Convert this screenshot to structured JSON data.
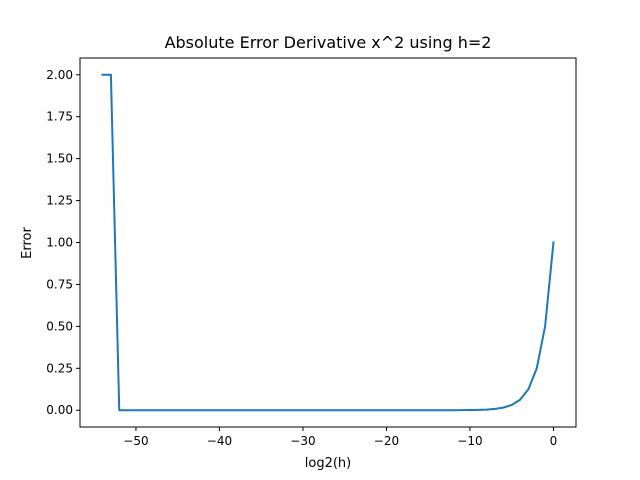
{
  "chart_data": {
    "type": "line",
    "title": "Absolute Error Derivative x^2 using h=2",
    "xlabel": "log2(h)",
    "ylabel": "Error",
    "xlim": [
      -56.7,
      2.7
    ],
    "ylim": [
      -0.1,
      2.1
    ],
    "grid": false,
    "x_ticks": [
      -50,
      -40,
      -30,
      -20,
      -10,
      0
    ],
    "x_tick_labels": [
      "−50",
      "−40",
      "−30",
      "−20",
      "−10",
      "0"
    ],
    "y_ticks": [
      0.0,
      0.25,
      0.5,
      0.75,
      1.0,
      1.25,
      1.5,
      1.75,
      2.0
    ],
    "y_tick_labels": [
      "0.00",
      "0.25",
      "0.50",
      "0.75",
      "1.00",
      "1.25",
      "1.50",
      "1.75",
      "2.00"
    ],
    "colors": {
      "line": "#1f77b4"
    },
    "series": [
      {
        "x": [
          -54,
          -53,
          -52,
          -51,
          -50,
          -49,
          -48,
          -47,
          -46,
          -45,
          -44,
          -43,
          -42,
          -41,
          -40,
          -39,
          -38,
          -37,
          -36,
          -35,
          -34,
          -33,
          -32,
          -31,
          -30,
          -29,
          -28,
          -27,
          -26,
          -25,
          -24,
          -23,
          -22,
          -21,
          -20,
          -19,
          -18,
          -17,
          -16,
          -15,
          -14,
          -13,
          -12,
          -11,
          -10,
          -9,
          -8,
          -7,
          -6,
          -5,
          -4,
          -3,
          -2,
          -1,
          0
        ],
        "y": [
          2.0,
          2.0,
          0.0,
          0.0,
          0.0,
          0.0,
          0.0,
          0.0,
          0.0,
          0.0,
          0.0,
          0.0,
          0.0,
          0.0,
          0.0,
          0.0,
          0.0,
          0.0,
          0.0,
          0.0,
          0.0,
          0.0,
          0.0,
          0.0,
          0.0,
          0.0,
          0.0,
          0.0,
          0.0,
          0.0,
          0.0,
          0.0,
          0.0,
          0.0,
          0.0,
          0.0,
          0.0,
          0.0,
          0.0,
          0.0,
          0.0,
          0.0,
          0.0002,
          0.0005,
          0.001,
          0.002,
          0.0039,
          0.0078,
          0.0156,
          0.0313,
          0.0625,
          0.125,
          0.25,
          0.5,
          1.0
        ]
      }
    ]
  }
}
